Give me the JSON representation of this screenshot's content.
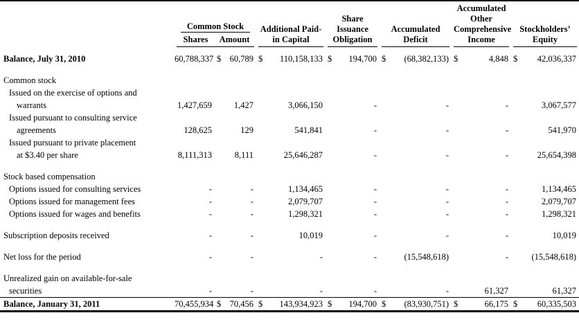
{
  "table": {
    "header": {
      "common_stock": "Common Stock",
      "shares": "Shares",
      "amount": "Amount",
      "additional_paid_in": [
        "Additional Paid-",
        "in Capital"
      ],
      "share_issuance": [
        "Share",
        "Issuance",
        "Obligation"
      ],
      "accumulated_deficit": [
        "Accumulated",
        "Deficit"
      ],
      "aoci": [
        "Accumulated",
        "Other",
        "Comprehensive",
        "Income"
      ],
      "stockholders_equity": [
        "Stockholders’",
        "Equity"
      ]
    },
    "rows": [
      {
        "type": "data",
        "label": "Balance, July 31, 2010",
        "indent": 0,
        "bold": true,
        "dollars": true,
        "values": [
          "60,788,337",
          "60,789",
          "110,158,133",
          "194,700",
          "(68,382,133)",
          "4,848",
          "42,036,337"
        ]
      },
      {
        "type": "spacer"
      },
      {
        "type": "label",
        "label": "Common stock",
        "indent": 0
      },
      {
        "type": "label",
        "label": "Issued on the exercise of options and",
        "indent": 1
      },
      {
        "type": "data",
        "label": "warrants",
        "indent": 2,
        "values": [
          "1,427,659",
          "1,427",
          "3,066,150",
          "-",
          "-",
          "-",
          "3,067,577"
        ]
      },
      {
        "type": "label",
        "label": "Issued pursuant to consulting service",
        "indent": 1
      },
      {
        "type": "data",
        "label": "agreements",
        "indent": 2,
        "values": [
          "128,625",
          "129",
          "541,841",
          "-",
          "-",
          "-",
          "541,970"
        ]
      },
      {
        "type": "label",
        "label": "Issued pursuant to private placement",
        "indent": 1
      },
      {
        "type": "data",
        "label": "at $3.40 per share",
        "indent": 2,
        "values": [
          "8,111,313",
          "8,111",
          "25,646,287",
          "-",
          "-",
          "-",
          "25,654,398"
        ]
      },
      {
        "type": "spacer"
      },
      {
        "type": "label",
        "label": "Stock based compensation",
        "indent": 0
      },
      {
        "type": "data",
        "label": "Options issued for consulting services",
        "indent": 1,
        "values": [
          "-",
          "-",
          "1,134,465",
          "-",
          "-",
          "-",
          "1,134,465"
        ]
      },
      {
        "type": "data",
        "label": "Options issued for management fees",
        "indent": 1,
        "values": [
          "-",
          "-",
          "2,079,707",
          "-",
          "-",
          "-",
          "2,079,707"
        ]
      },
      {
        "type": "data",
        "label": "Options issued for wages and benefits",
        "indent": 1,
        "values": [
          "-",
          "-",
          "1,298,321",
          "-",
          "-",
          "-",
          "1,298,321"
        ]
      },
      {
        "type": "spacer"
      },
      {
        "type": "data",
        "label": "Subscription deposits received",
        "indent": 0,
        "values": [
          "-",
          "-",
          "10,019",
          "-",
          "-",
          "-",
          "10,019"
        ]
      },
      {
        "type": "spacer"
      },
      {
        "type": "data",
        "label": "Net loss for the period",
        "indent": 0,
        "values": [
          "-",
          "-",
          "-",
          "-",
          "(15,548,618)",
          "-",
          "(15,548,618)"
        ]
      },
      {
        "type": "spacer"
      },
      {
        "type": "label",
        "label": "Unrealized gain on available-for-sale",
        "indent": 0
      },
      {
        "type": "data",
        "label": "securities",
        "indent": 1,
        "values": [
          "-",
          "-",
          "-",
          "-",
          "-",
          "61,327",
          "61,327"
        ]
      },
      {
        "type": "data",
        "label": "Balance, January 31, 2011",
        "indent": 0,
        "bold": true,
        "dollars": true,
        "border_top": true,
        "values": [
          "70,455,934",
          "70,456",
          "143,934,923",
          "194,700",
          "(83,930,751)",
          "66,175",
          "60,335,503"
        ]
      }
    ]
  }
}
